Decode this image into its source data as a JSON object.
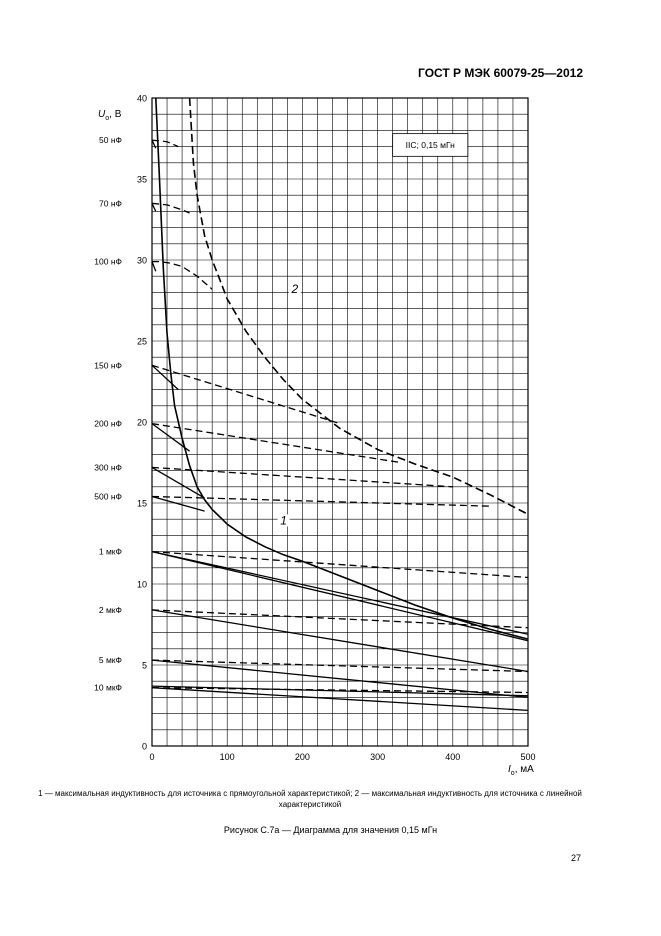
{
  "header": {
    "standard": "ГОСТ Р МЭК 60079-25—2012"
  },
  "chart_data": {
    "type": "line",
    "y_axis": {
      "label": "U",
      "subscript": "o",
      "unit": ", В",
      "ticks": [
        0,
        5,
        10,
        15,
        20,
        25,
        30,
        35,
        40
      ],
      "range": [
        0,
        40
      ],
      "minor_step": 1
    },
    "x_axis": {
      "label": "I",
      "subscript": "o",
      "unit": ", мА",
      "ticks": [
        0,
        100,
        200,
        300,
        400,
        500
      ],
      "range": [
        0,
        500
      ],
      "minor_step": 20
    },
    "box_label": "IIC; 0,15 мГн",
    "curve_labels": [
      {
        "text": "1",
        "x": 175,
        "y": 13.8
      },
      {
        "text": "2",
        "x": 190,
        "y": 28.1
      }
    ],
    "capacitance_labels": [
      {
        "text": "50 нФ",
        "y": 37.4
      },
      {
        "text": "70 нФ",
        "y": 33.5
      },
      {
        "text": "100 нФ",
        "y": 29.9
      },
      {
        "text": "150 нФ",
        "y": 23.5
      },
      {
        "text": "200 нФ",
        "y": 19.9
      },
      {
        "text": "300 нФ",
        "y": 17.2
      },
      {
        "text": "500 нФ",
        "y": 15.4
      },
      {
        "text": "1 мкФ",
        "y": 12.0
      },
      {
        "text": "2 мкФ",
        "y": 8.4
      },
      {
        "text": "5 мкФ",
        "y": 5.3
      },
      {
        "text": "10 мкФ",
        "y": 3.6
      }
    ],
    "series": [
      {
        "name": "1",
        "style": "solid",
        "x": [
          5,
          10,
          15,
          20,
          25,
          30,
          40,
          50,
          60,
          70,
          80,
          100,
          125,
          150,
          175,
          200,
          250,
          300,
          350,
          400,
          450,
          500
        ],
        "y": [
          40,
          35,
          29.5,
          25.5,
          23,
          21,
          19,
          17.3,
          16,
          15.2,
          14.6,
          13.7,
          12.9,
          12.3,
          11.8,
          11.4,
          10.5,
          9.6,
          8.7,
          7.9,
          7.2,
          6.6
        ]
      },
      {
        "name": "2",
        "style": "dashed",
        "x": [
          50,
          55,
          60,
          70,
          80,
          90,
          100,
          125,
          150,
          175,
          200,
          250,
          300,
          350,
          400,
          450,
          500
        ],
        "y": [
          40,
          36,
          34,
          31.5,
          30,
          28.8,
          27.6,
          25.6,
          24,
          22.6,
          21.4,
          19.6,
          18.3,
          17.4,
          16.6,
          15.5,
          14.3
        ]
      }
    ],
    "capacitance_lines": [
      {
        "solid": {
          "x": [
            0,
            70
          ],
          "y": [
            15.4,
            14.5
          ]
        },
        "dashed": {
          "x": [
            0,
            450
          ],
          "y": [
            15.4,
            14.8
          ]
        }
      },
      {
        "solid": {
          "x": [
            0,
            70
          ],
          "y": [
            17.2,
            15.3
          ]
        },
        "dashed": {
          "x": [
            0,
            400
          ],
          "y": [
            17.2,
            16.0
          ]
        }
      },
      {
        "solid": {
          "x": [
            0,
            50
          ],
          "y": [
            19.9,
            18.2
          ]
        },
        "dashed": {
          "x": [
            0,
            330
          ],
          "y": [
            19.9,
            17.5
          ]
        }
      },
      {
        "solid": {
          "x": [
            0,
            35
          ],
          "y": [
            23.5,
            22.0
          ]
        },
        "dashed": {
          "x": [
            0,
            250
          ],
          "y": [
            23.5,
            19.9
          ]
        }
      },
      {
        "solid": {
          "x": [
            0,
            5
          ],
          "y": [
            29.9,
            29.3
          ]
        },
        "dashed": {
          "x": [
            0,
            10,
            25,
            40,
            50,
            60,
            70,
            80
          ],
          "y": [
            29.9,
            29.9,
            29.8,
            29.6,
            29.3,
            29.0,
            28.6,
            28.2
          ]
        }
      },
      {
        "solid": {
          "x": [
            0,
            5
          ],
          "y": [
            33.5,
            33.0
          ]
        },
        "dashed": {
          "x": [
            0,
            20,
            40,
            50
          ],
          "y": [
            33.5,
            33.4,
            33.1,
            32.9
          ]
        }
      },
      {
        "solid": {
          "x": [
            0,
            5
          ],
          "y": [
            37.4,
            36.9
          ]
        },
        "dashed": {
          "x": [
            0,
            20,
            35
          ],
          "y": [
            37.4,
            37.3,
            37.0
          ]
        }
      },
      {
        "solid": {
          "x": [
            0,
            500
          ],
          "y": [
            12.0,
            6.5
          ]
        },
        "dashed": {
          "x": [
            0,
            500
          ],
          "y": [
            12.0,
            10.4
          ]
        }
      },
      {
        "solid": {
          "x": [
            0,
            500
          ],
          "y": [
            8.4,
            4.6
          ]
        },
        "dashed": {
          "x": [
            0,
            500
          ],
          "y": [
            8.4,
            7.3
          ]
        }
      },
      {
        "solid": {
          "x": [
            0,
            500
          ],
          "y": [
            5.3,
            3.0
          ]
        },
        "dashed": {
          "x": [
            0,
            500
          ],
          "y": [
            5.3,
            4.6
          ]
        }
      },
      {
        "solid": {
          "x": [
            0,
            500
          ],
          "y": [
            3.6,
            2.2
          ]
        },
        "dashed": {
          "x": [
            0,
            500
          ],
          "y": [
            3.6,
            3.3
          ]
        }
      }
    ],
    "extra_lines": [
      {
        "x": [
          0,
          500
        ],
        "y": [
          12.0,
          6.9
        ]
      },
      {
        "x": [
          0,
          500
        ],
        "y": [
          3.7,
          3.1
        ]
      }
    ]
  },
  "caption": {
    "text": "1 — максимальная индуктивность для источника с прямоугольной характеристикой; 2 — максимальная индуктивность для источника с линейной характеристикой"
  },
  "figure_title": "Рисунок С.7а — Диаграмма для значения 0,15 мГн",
  "page_number": "27"
}
